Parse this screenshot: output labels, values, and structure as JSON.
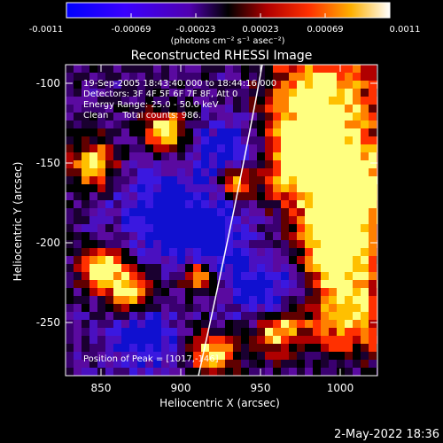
{
  "colorbar": {
    "tick_labels": [
      "-0.0011",
      "-0.00069",
      "-0.00023",
      "0.00023",
      "0.00069",
      "0.0011"
    ],
    "units": "(photons cm⁻² s⁻¹ asec⁻²)",
    "colors": [
      "#0000ff",
      "#2a00ff",
      "#5a00d8",
      "#000000",
      "#c00000",
      "#ff4000",
      "#ff9a00",
      "#ffe000",
      "#ffffff"
    ]
  },
  "title": "Reconstructed RHESSI Image",
  "annotations": {
    "line1": "19-Sep-2005 18:43:40.000 to 18:44:16.000",
    "line2": "Detectors: 3F 4F 5F 6F 7F 8F, Att 0",
    "line3": "Energy Range: 25.0 - 50.0 keV",
    "line4": "Clean     Total counts: 986.",
    "peak": "Position of Peak = [1017,-146]"
  },
  "axes": {
    "xlabel": "Heliocentric X (arcsec)",
    "ylabel": "Heliocentric Y (arcsec)",
    "xticks": [
      "850",
      "900",
      "950",
      "1000"
    ],
    "yticks": [
      "-100",
      "-150",
      "-200",
      "-250"
    ]
  },
  "footer": {
    "timestamp": "2-May-2022 18:36"
  }
}
